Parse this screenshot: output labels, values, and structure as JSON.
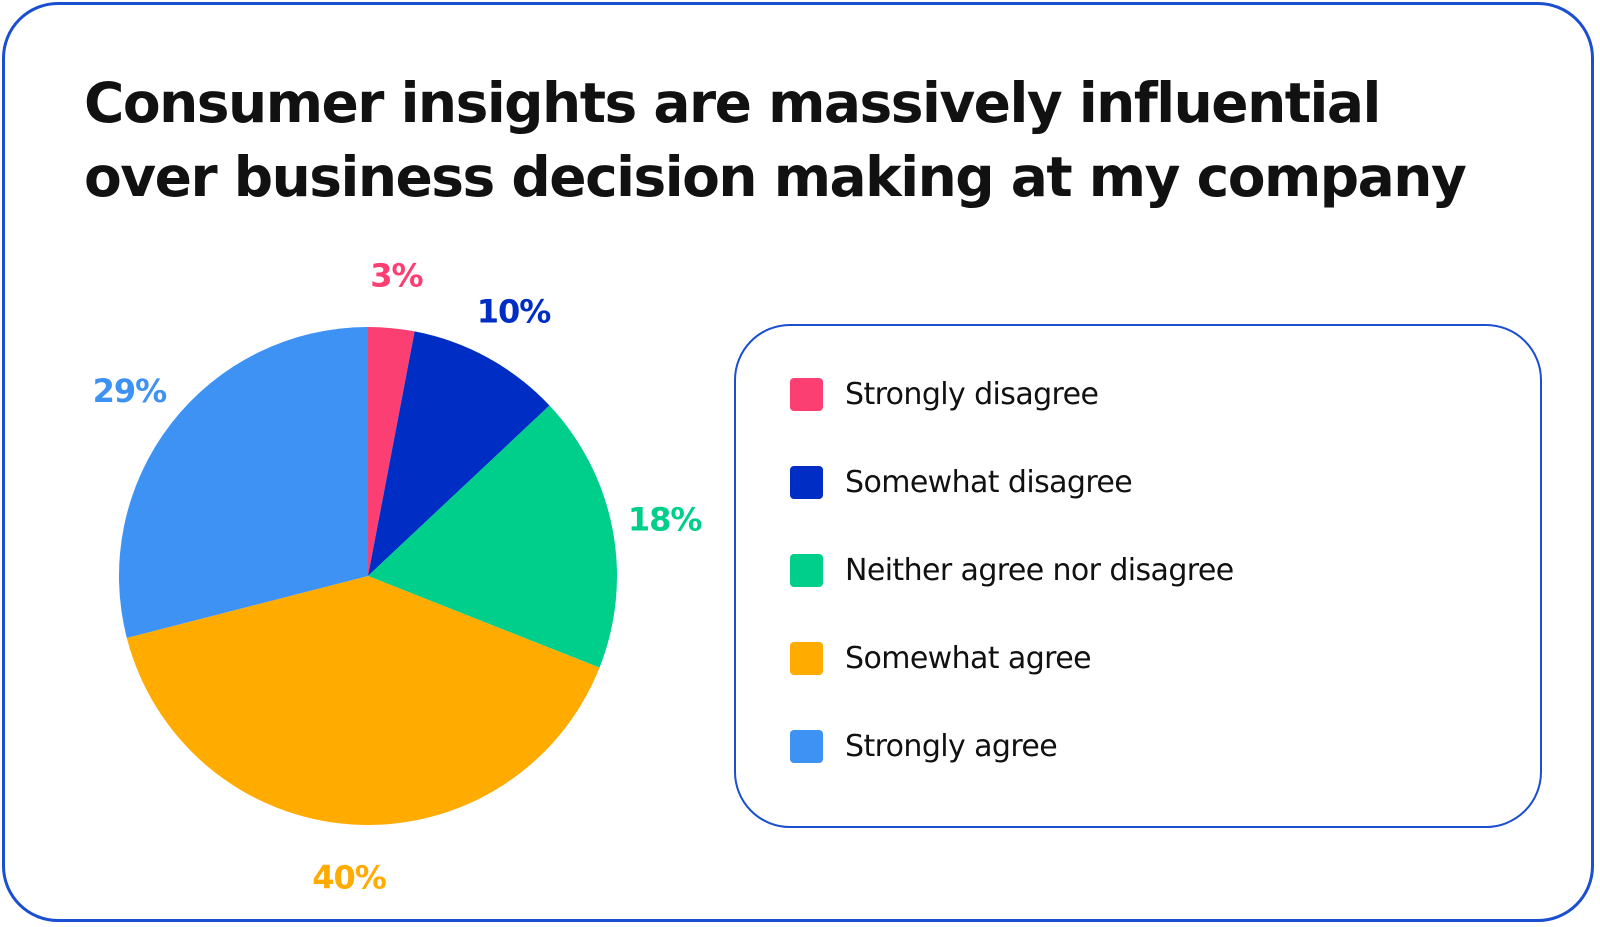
{
  "chart_data": {
    "type": "pie",
    "title": "Consumer insights are massively influential over business decision making at my company",
    "categories": [
      "Strongly disagree",
      "Somewhat disagree",
      "Neither agree nor disagree",
      "Somewhat agree",
      "Strongly agree"
    ],
    "values": [
      3,
      10,
      18,
      40,
      29
    ],
    "data_labels": [
      "3%",
      "10%",
      "18%",
      "40%",
      "29%"
    ],
    "colors": [
      "#fb3f73",
      "#002ec4",
      "#00cf8c",
      "#ffab00",
      "#3d92f4"
    ],
    "legend_position": "right"
  },
  "accent_color": "#1b4fd1"
}
